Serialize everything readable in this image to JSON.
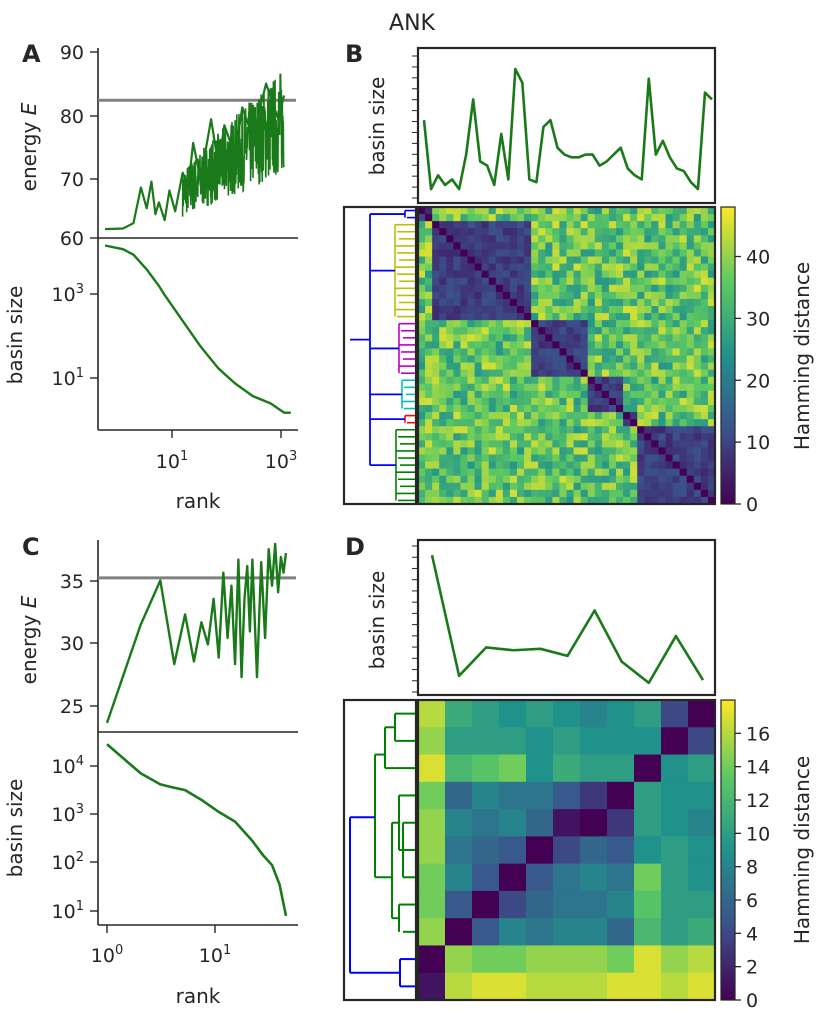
{
  "figure_title": "ANK",
  "colors": {
    "series": "#1a7a1a",
    "threshold": "#808080",
    "dendro_blue": "#0000ff",
    "dendro_yellow": "#bfbf00",
    "dendro_magenta": "#bf00bf",
    "dendro_cyan": "#00bfbf",
    "dendro_red": "#ff0000",
    "dendro_green": "#008000",
    "frame": "#262626"
  },
  "chart_data": [
    {
      "panel": "A",
      "type": "line",
      "subplots": [
        {
          "ylabel": "energy E",
          "yticks": [
            "60",
            "70",
            "80",
            "90"
          ],
          "ylim": [
            60,
            92
          ],
          "threshold": 83.2,
          "note": "energy of ranked attractors, x log-scaled (rank 1..1000); dense oscillation for rank > 30",
          "x": [
            1,
            2,
            3,
            4,
            5,
            6,
            7,
            8,
            10,
            12,
            15,
            20,
            25,
            30,
            40,
            60,
            80,
            100,
            150,
            200,
            300,
            500,
            800,
            1000
          ],
          "y": [
            61.5,
            61.6,
            62.5,
            68.5,
            65.0,
            69.5,
            64.0,
            66.0,
            63.0,
            68.0,
            64.5,
            71.0,
            69.0,
            76.0,
            70.0,
            80.0,
            72.0,
            79.0,
            74.0,
            82.0,
            77.0,
            86.0,
            80.0,
            84.0
          ]
        },
        {
          "ylabel": "basin size",
          "yscale": "log",
          "yticks": [
            "10^1",
            "10^3"
          ],
          "ylim_log10": [
            -0.2,
            4.7
          ],
          "x": [
            1,
            2,
            3,
            5,
            8,
            10,
            20,
            40,
            80,
            150,
            300,
            600,
            1000,
            1300
          ],
          "log10_y": [
            4.55,
            4.45,
            4.3,
            3.9,
            3.45,
            3.2,
            2.5,
            1.8,
            1.2,
            0.8,
            0.45,
            0.25,
            0.0,
            0.0
          ]
        }
      ],
      "xlabel": "rank",
      "xscale": "log",
      "xticks": [
        "10^1",
        "10^3"
      ]
    },
    {
      "panel": "B",
      "type": "heatmap",
      "top_plot": {
        "type": "line",
        "ylabel": "basin size",
        "yscale": "log",
        "values": [
          0.55,
          0.05,
          0.15,
          0.08,
          0.12,
          0.05,
          0.3,
          0.7,
          0.25,
          0.22,
          0.08,
          0.45,
          0.12,
          0.92,
          0.82,
          0.12,
          0.1,
          0.5,
          0.55,
          0.35,
          0.3,
          0.28,
          0.28,
          0.3,
          0.3,
          0.22,
          0.25,
          0.3,
          0.35,
          0.2,
          0.15,
          0.12,
          0.85,
          0.3,
          0.4,
          0.28,
          0.2,
          0.18,
          0.1,
          0.05,
          0.75,
          0.7
        ]
      },
      "colorbar": {
        "label": "Hamming distance",
        "ticks": [
          "0",
          "10",
          "20",
          "30",
          "40"
        ],
        "min": 0,
        "max": 48
      },
      "clusters": [
        {
          "size": 2,
          "color": "dendro_blue"
        },
        {
          "size": 14,
          "color": "dendro_yellow"
        },
        {
          "size": 8,
          "color": "dendro_magenta"
        },
        {
          "size": 5,
          "color": "dendro_cyan"
        },
        {
          "size": 2,
          "color": "dendro_red"
        },
        {
          "size": 11,
          "color": "dendro_green"
        }
      ],
      "within_cluster_distance": 6,
      "between_cluster_distance": 35
    },
    {
      "panel": "C",
      "type": "line",
      "subplots": [
        {
          "ylabel": "energy E",
          "yticks": [
            "25",
            "30",
            "35"
          ],
          "ylim": [
            22.8,
            37.5
          ],
          "threshold": 34.6,
          "x": [
            1,
            2,
            3,
            4,
            5,
            6,
            7,
            8,
            9,
            10,
            11,
            12,
            13,
            14,
            15,
            16,
            17,
            18,
            19,
            20,
            22,
            24,
            26,
            28,
            30,
            32,
            34,
            36,
            38,
            40
          ],
          "y": [
            23.5,
            31.0,
            34.4,
            28.0,
            31.8,
            28.2,
            31.2,
            29.5,
            33.0,
            28.5,
            35.0,
            30.0,
            34.0,
            28.0,
            36.0,
            27.0,
            33.0,
            35.5,
            30.5,
            36.0,
            27.0,
            35.8,
            30.0,
            36.8,
            34.0,
            37.2,
            33.5,
            36.2,
            35.0,
            36.5
          ]
        },
        {
          "ylabel": "basin size",
          "yscale": "log",
          "yticks": [
            "10^1",
            "10^2",
            "10^3",
            "10^4"
          ],
          "ylim_log10": [
            0.8,
            4.6
          ],
          "x": [
            1,
            2,
            3,
            4,
            5,
            7,
            10,
            14,
            20,
            25,
            30,
            35,
            40
          ],
          "log10_y": [
            4.45,
            3.85,
            3.62,
            3.55,
            3.5,
            3.3,
            3.05,
            2.85,
            2.45,
            2.15,
            1.95,
            1.55,
            0.9
          ]
        }
      ],
      "xlabel": "rank",
      "xscale": "log",
      "xticks": [
        "10^0",
        "10^1"
      ]
    },
    {
      "panel": "D",
      "type": "heatmap",
      "top_plot": {
        "type": "line",
        "ylabel": "basin size",
        "yscale": "log",
        "values": [
          0.95,
          0.1,
          0.3,
          0.28,
          0.29,
          0.24,
          0.56,
          0.2,
          0.05,
          0.38,
          0.07
        ]
      },
      "colorbar": {
        "label": "Hamming distance",
        "ticks": [
          "0",
          "2",
          "4",
          "6",
          "8",
          "10",
          "12",
          "14",
          "16"
        ],
        "min": 0,
        "max": 18
      },
      "matrix": [
        [
          16,
          11,
          10,
          9,
          10,
          9,
          8,
          9,
          10,
          4,
          0
        ],
        [
          15,
          10,
          10,
          10,
          9,
          10,
          9,
          9,
          9,
          0,
          4
        ],
        [
          17,
          12,
          13,
          14,
          9,
          11,
          10,
          10,
          0,
          9,
          10
        ],
        [
          14,
          6,
          8,
          7,
          7,
          5,
          3,
          0,
          10,
          9,
          9
        ],
        [
          15,
          8,
          7,
          8,
          6,
          1,
          0,
          3,
          10,
          9,
          8
        ],
        [
          15,
          7,
          6,
          5,
          0,
          4,
          6,
          5,
          9,
          10,
          9
        ],
        [
          14,
          8,
          5,
          0,
          5,
          7,
          8,
          7,
          14,
          10,
          9
        ],
        [
          14,
          5,
          0,
          4,
          6,
          7,
          7,
          8,
          13,
          10,
          10
        ],
        [
          15,
          0,
          5,
          8,
          7,
          8,
          8,
          6,
          12,
          10,
          11
        ],
        [
          0,
          15,
          14,
          14,
          15,
          15,
          15,
          14,
          17,
          15,
          16
        ],
        [
          1,
          16,
          17,
          17,
          16,
          16,
          16,
          17,
          17,
          16,
          17
        ]
      ]
    }
  ]
}
